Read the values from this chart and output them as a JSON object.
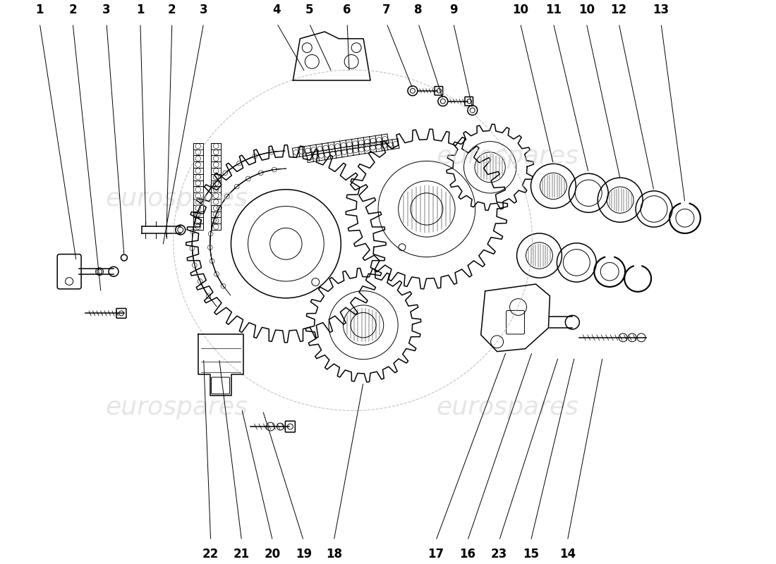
{
  "background_color": "#ffffff",
  "watermark_text": "eurospares",
  "line_color": "#000000",
  "font_size_label": 12,
  "font_size_watermark": 26,
  "top_labels": [
    [
      "1",
      0.055
    ],
    [
      "2",
      0.1
    ],
    [
      "3",
      0.148
    ],
    [
      "1",
      0.195
    ],
    [
      "2",
      0.24
    ],
    [
      "3",
      0.285
    ],
    [
      "4",
      0.39
    ],
    [
      "5",
      0.435
    ],
    [
      "6",
      0.49
    ],
    [
      "7",
      0.545
    ],
    [
      "8",
      0.59
    ],
    [
      "9",
      0.64
    ],
    [
      "10",
      0.735
    ],
    [
      "11",
      0.782
    ],
    [
      "10",
      0.828
    ],
    [
      "12",
      0.874
    ],
    [
      "13",
      0.935
    ]
  ],
  "bottom_labels": [
    [
      "22",
      0.295
    ],
    [
      "21",
      0.34
    ],
    [
      "20",
      0.383
    ],
    [
      "19",
      0.426
    ],
    [
      "18",
      0.468
    ],
    [
      "17",
      0.613
    ],
    [
      "16",
      0.658
    ],
    [
      "23",
      0.703
    ],
    [
      "15",
      0.748
    ],
    [
      "14",
      0.8
    ]
  ]
}
